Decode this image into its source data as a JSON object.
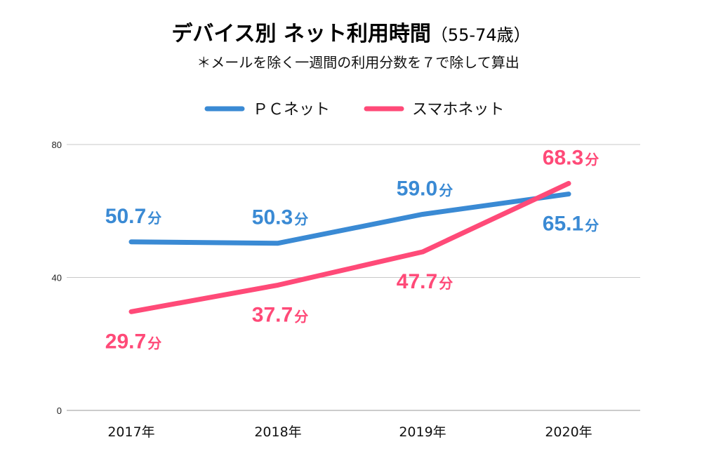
{
  "chart_data": {
    "type": "line",
    "title": "デバイス別 ネット利用時間",
    "title_suffix": "（55-74歳）",
    "subtitle": "＊メールを除く一週間の利用分数を７で除して算出",
    "categories": [
      "2017年",
      "2018年",
      "2019年",
      "2020年"
    ],
    "ylim": [
      0,
      80
    ],
    "yticks": [
      "0",
      "40",
      "80"
    ],
    "grid": true,
    "legend_position": "top",
    "value_unit": "分",
    "series": [
      {
        "name": "ＰＣネット",
        "color": "#3a8ad4",
        "values": [
          50.7,
          50.3,
          59.0,
          65.1
        ],
        "labels": [
          "50.7",
          "50.3",
          "59.0",
          "65.1"
        ],
        "label_side": [
          "above",
          "above",
          "above",
          "below"
        ]
      },
      {
        "name": "スマホネット",
        "color": "#ff4a78",
        "values": [
          29.7,
          37.7,
          47.7,
          68.3
        ],
        "labels": [
          "29.7",
          "37.7",
          "47.7",
          "68.3"
        ],
        "label_side": [
          "below",
          "below",
          "below",
          "above"
        ]
      }
    ]
  }
}
